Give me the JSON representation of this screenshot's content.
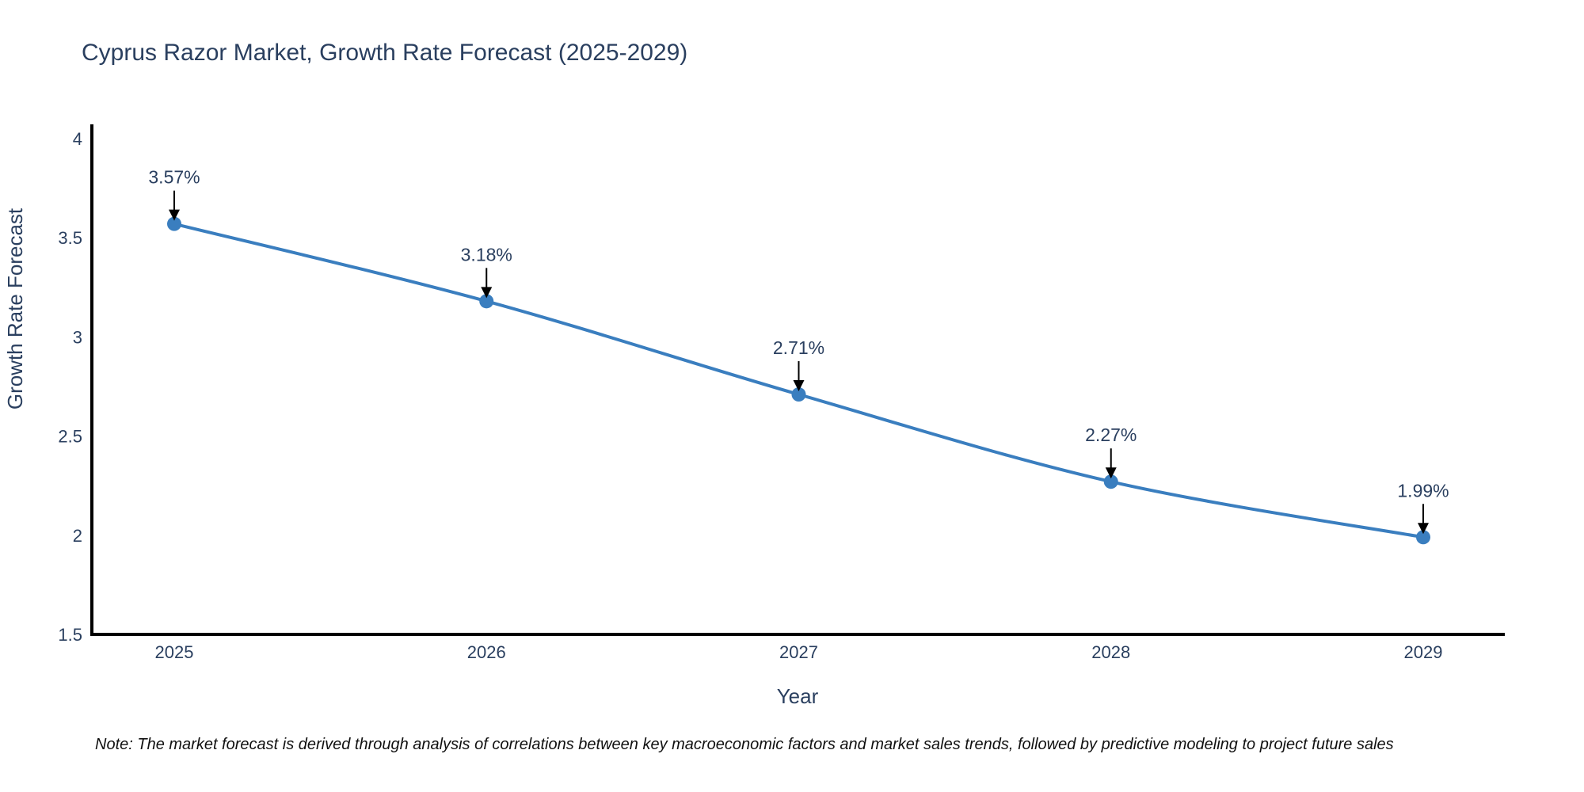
{
  "chart_data": {
    "type": "line",
    "title": "Cyprus Razor Market, Growth Rate Forecast (2025-2029)",
    "xlabel": "Year",
    "ylabel": "Growth Rate Forecast",
    "categories": [
      "2025",
      "2026",
      "2027",
      "2028",
      "2029"
    ],
    "values": [
      3.57,
      3.18,
      2.71,
      2.27,
      1.99
    ],
    "point_labels": [
      "3.57%",
      "3.18%",
      "2.71%",
      "2.27%",
      "1.99%"
    ],
    "ylim": [
      1.5,
      4
    ],
    "yticks": [
      1.5,
      2,
      2.5,
      3,
      3.5,
      4
    ],
    "grid": false,
    "legend_position": "none",
    "line_color": "#3a7ebf",
    "marker_color": "#3a7ebf",
    "annotation_arrow_color": "#000000",
    "axis_color": "#000000",
    "text_color": "#2a3f5f"
  },
  "note": "Note: The market forecast is derived through analysis of correlations between key macroeconomic factors and market sales trends, followed by predictive modeling to project future sales"
}
